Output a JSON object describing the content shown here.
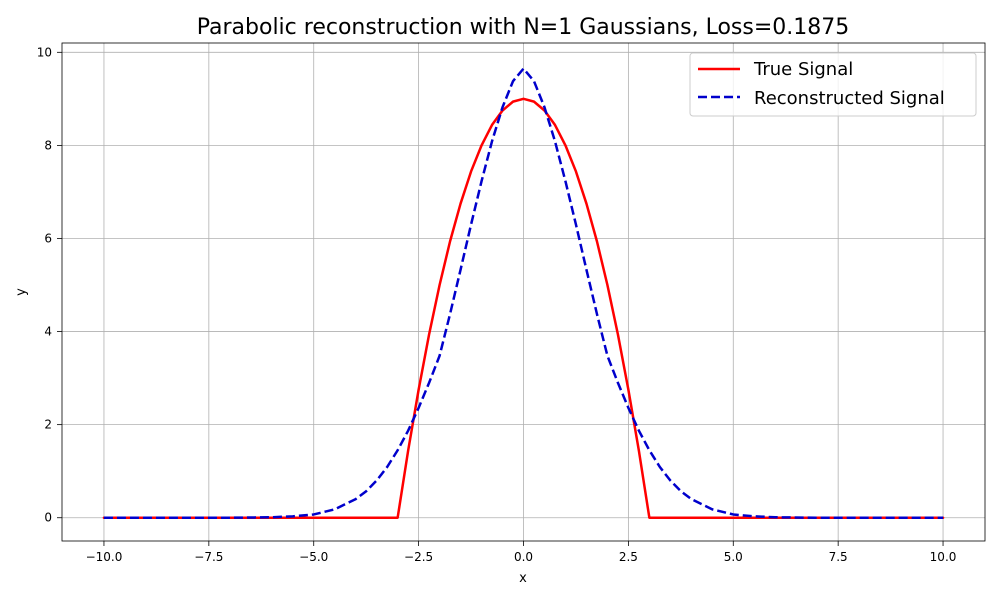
{
  "chart_data": {
    "type": "line",
    "title": "Parabolic reconstruction with N=1 Gaussians, Loss=0.1875",
    "xlabel": "x",
    "ylabel": "y",
    "xlim": [
      -11.0,
      11.0
    ],
    "ylim": [
      -0.5,
      10.2
    ],
    "x_ticks": [
      -10.0,
      -7.5,
      -5.0,
      -2.5,
      0.0,
      2.5,
      5.0,
      7.5,
      10.0
    ],
    "x_tick_labels": [
      "−10.0",
      "−7.5",
      "−5.0",
      "−2.5",
      "0.0",
      "2.5",
      "5.0",
      "7.5",
      "10.0"
    ],
    "y_ticks": [
      0,
      2,
      4,
      6,
      8,
      10
    ],
    "y_tick_labels": [
      "0",
      "2",
      "4",
      "6",
      "8",
      "10"
    ],
    "grid": true,
    "legend_position": "top-right",
    "series": [
      {
        "name": "True Signal",
        "color": "#ff0000",
        "style": "solid",
        "x": [
          -10.0,
          -9.0,
          -8.0,
          -7.0,
          -6.0,
          -5.0,
          -4.0,
          -3.0,
          -2.75,
          -2.5,
          -2.25,
          -2.0,
          -1.75,
          -1.5,
          -1.25,
          -1.0,
          -0.75,
          -0.5,
          -0.25,
          0.0,
          0.25,
          0.5,
          0.75,
          1.0,
          1.25,
          1.5,
          1.75,
          2.0,
          2.25,
          2.5,
          2.75,
          3.0,
          4.0,
          5.0,
          6.0,
          7.0,
          8.0,
          9.0,
          10.0
        ],
        "values": [
          0,
          0,
          0,
          0,
          0,
          0,
          0,
          0,
          1.44,
          2.75,
          3.94,
          5.0,
          5.94,
          6.75,
          7.44,
          8.0,
          8.44,
          8.75,
          8.94,
          9.0,
          8.94,
          8.75,
          8.44,
          8.0,
          7.44,
          6.75,
          5.94,
          5.0,
          3.94,
          2.75,
          1.44,
          0,
          0,
          0,
          0,
          0,
          0,
          0,
          0
        ]
      },
      {
        "name": "Reconstructed Signal",
        "color": "#0000cc",
        "style": "dashed",
        "x": [
          -10.0,
          -9.0,
          -8.0,
          -7.0,
          -6.0,
          -5.5,
          -5.0,
          -4.5,
          -4.0,
          -3.75,
          -3.5,
          -3.25,
          -3.0,
          -2.75,
          -2.5,
          -2.25,
          -2.0,
          -1.75,
          -1.5,
          -1.25,
          -1.0,
          -0.75,
          -0.5,
          -0.25,
          0.0,
          0.25,
          0.5,
          0.75,
          1.0,
          1.25,
          1.5,
          1.75,
          2.0,
          2.25,
          2.5,
          2.75,
          3.0,
          3.25,
          3.5,
          3.75,
          4.0,
          4.5,
          5.0,
          5.5,
          6.0,
          7.0,
          8.0,
          9.0,
          10.0
        ],
        "values": [
          0,
          0,
          0,
          0,
          0.01,
          0.03,
          0.07,
          0.18,
          0.4,
          0.57,
          0.8,
          1.09,
          1.45,
          1.87,
          2.36,
          2.9,
          3.48,
          4.38,
          5.33,
          6.3,
          7.23,
          8.09,
          8.82,
          9.38,
          9.65,
          9.38,
          8.82,
          8.09,
          7.23,
          6.3,
          5.33,
          4.38,
          3.48,
          2.9,
          2.36,
          1.87,
          1.45,
          1.09,
          0.8,
          0.57,
          0.4,
          0.18,
          0.07,
          0.03,
          0.01,
          0,
          0,
          0,
          0
        ]
      }
    ]
  }
}
